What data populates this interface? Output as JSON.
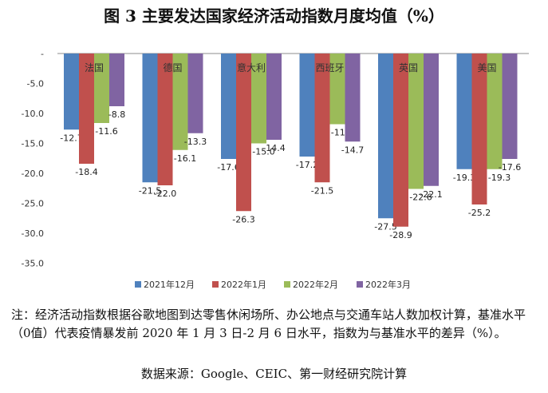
{
  "title": "图 3 主要发达国家经济活动指数月度均值（%）",
  "note": "注：经济活动指数根据谷歌地图到达零售休闲场所、办公地点与交通车站人数加权计算，基准水平（0值）代表疫情暴发前 2020 年 1 月 3 日-2 月 6 日水平，指数为与基准水平的差异（%）。",
  "source": "数据来源：Google、CEIC、第一财经研究院计算",
  "chart_data": {
    "type": "bar",
    "categories": [
      "法国",
      "德国",
      "意大利",
      "西班牙",
      "英国",
      "美国"
    ],
    "series": [
      {
        "name": "2021年12月",
        "color": "#4f81bd",
        "values": [
          -12.7,
          -21.5,
          -17.6,
          -17.2,
          -27.5,
          -19.3
        ]
      },
      {
        "name": "2022年1月",
        "color": "#c0504d",
        "values": [
          -18.4,
          -22.0,
          -26.3,
          -21.5,
          -28.9,
          -25.2
        ]
      },
      {
        "name": "2022年2月",
        "color": "#9bbb59",
        "values": [
          -11.6,
          -16.1,
          -15.0,
          -11.8,
          -22.6,
          -19.3
        ]
      },
      {
        "name": "2022年3月",
        "color": "#8064a2",
        "values": [
          -8.8,
          -13.3,
          -14.4,
          -14.7,
          -22.1,
          -17.6
        ]
      }
    ],
    "yticks": [
      "-",
      "-5.0",
      "-10.0",
      "-15.0",
      "-20.0",
      "-25.0",
      "-30.0",
      "-35.0"
    ],
    "ylim": [
      -35,
      0
    ],
    "grid": false,
    "legend": "bottom"
  }
}
